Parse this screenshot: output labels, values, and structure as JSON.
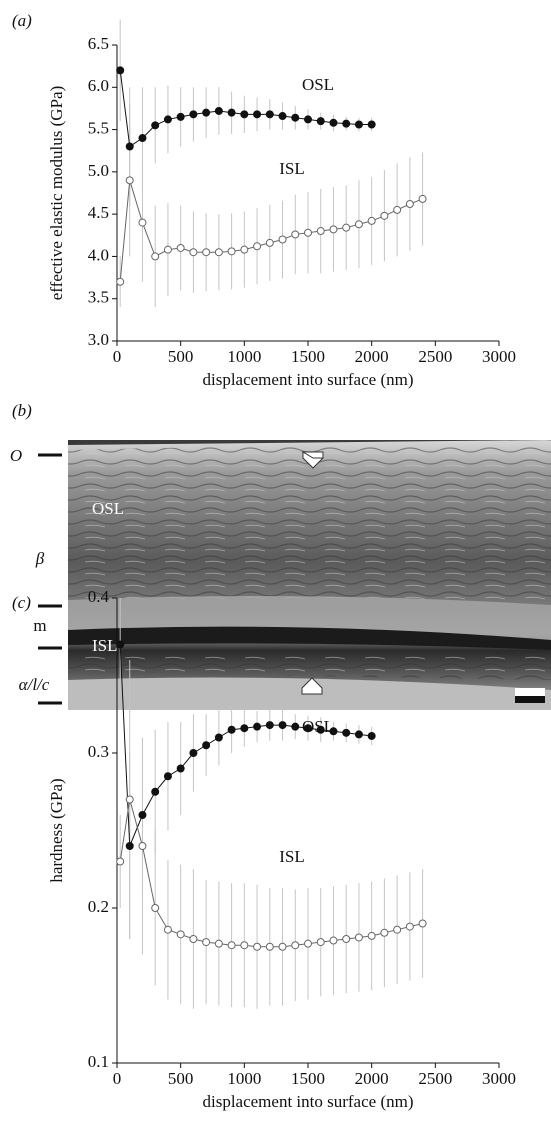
{
  "chart_data": [
    {
      "type": "scatter",
      "panel": "(a)",
      "ylabel": "effective elastic modulus (GPa)",
      "xlabel": "displacement into surface (nm)",
      "xlim": [
        0,
        3000
      ],
      "xticks": [
        0,
        500,
        1000,
        1500,
        2000,
        2500,
        3000
      ],
      "ylim": [
        3.0,
        6.5
      ],
      "yticks": [
        {
          "value": 3.0,
          "label": "3.0"
        },
        3.5,
        {
          "value": 4.0,
          "label": "4.0"
        },
        4.5,
        {
          "value": 5.0,
          "label": "5.0"
        },
        5.5,
        {
          "value": 6.0,
          "label": "6.0"
        },
        6.5
      ],
      "series": [
        {
          "name": "OSL",
          "color": "#111111",
          "marker_fill": "#111111",
          "x": [
            25,
            100,
            200,
            300,
            400,
            500,
            600,
            700,
            800,
            900,
            1000,
            1100,
            1200,
            1300,
            1400,
            1500,
            1600,
            1700,
            1800,
            1900,
            2000
          ],
          "values": [
            6.2,
            5.3,
            5.4,
            5.55,
            5.62,
            5.65,
            5.68,
            5.7,
            5.72,
            5.7,
            5.68,
            5.68,
            5.68,
            5.66,
            5.64,
            5.62,
            5.6,
            5.58,
            5.57,
            5.56,
            5.56
          ],
          "errors": [
            0.6,
            0.7,
            0.6,
            0.45,
            0.4,
            0.35,
            0.32,
            0.3,
            0.28,
            0.25,
            0.22,
            0.2,
            0.18,
            0.16,
            0.14,
            0.12,
            0.1,
            0.1,
            0.08,
            0.08,
            0.08
          ]
        },
        {
          "name": "ISL",
          "color": "#666666",
          "marker_fill": "#ffffff",
          "x": [
            25,
            100,
            200,
            300,
            400,
            500,
            600,
            700,
            800,
            900,
            1000,
            1100,
            1200,
            1300,
            1400,
            1500,
            1600,
            1700,
            1800,
            1900,
            2000,
            2100,
            2200,
            2300,
            2400
          ],
          "values": [
            3.7,
            4.9,
            4.4,
            4.0,
            4.08,
            4.1,
            4.05,
            4.05,
            4.05,
            4.06,
            4.08,
            4.12,
            4.16,
            4.2,
            4.26,
            4.28,
            4.3,
            4.32,
            4.34,
            4.38,
            4.42,
            4.48,
            4.55,
            4.62,
            4.68
          ],
          "errors": [
            0.3,
            0.9,
            0.7,
            0.6,
            0.55,
            0.5,
            0.48,
            0.46,
            0.45,
            0.45,
            0.45,
            0.45,
            0.45,
            0.46,
            0.47,
            0.48,
            0.5,
            0.5,
            0.5,
            0.52,
            0.52,
            0.54,
            0.55,
            0.55,
            0.55
          ]
        }
      ]
    },
    {
      "type": "scatter",
      "panel": "(c)",
      "ylabel": "hardness (GPa)",
      "xlabel": "displacement into surface (nm)",
      "xlim": [
        0,
        3000
      ],
      "xticks": [
        0,
        500,
        1000,
        1500,
        2000,
        2500,
        3000
      ],
      "ylim": [
        0.1,
        0.4
      ],
      "yticks": [
        0.1,
        0.2,
        0.3,
        0.4
      ],
      "series": [
        {
          "name": "OSL",
          "color": "#111111",
          "marker_fill": "#111111",
          "x": [
            25,
            100,
            200,
            300,
            400,
            500,
            600,
            700,
            800,
            900,
            1000,
            1100,
            1200,
            1300,
            1400,
            1500,
            1600,
            1700,
            1800,
            1900,
            2000
          ],
          "values": [
            0.37,
            0.24,
            0.26,
            0.275,
            0.285,
            0.29,
            0.3,
            0.305,
            0.31,
            0.315,
            0.316,
            0.317,
            0.318,
            0.318,
            0.317,
            0.316,
            0.315,
            0.314,
            0.313,
            0.312,
            0.311
          ],
          "errors": [
            0.03,
            0.06,
            0.05,
            0.04,
            0.035,
            0.03,
            0.025,
            0.02,
            0.018,
            0.015,
            0.012,
            0.01,
            0.01,
            0.01,
            0.008,
            0.008,
            0.008,
            0.006,
            0.006,
            0.006,
            0.006
          ]
        },
        {
          "name": "ISL",
          "color": "#666666",
          "marker_fill": "#ffffff",
          "x": [
            25,
            100,
            200,
            300,
            400,
            500,
            600,
            700,
            800,
            900,
            1000,
            1100,
            1200,
            1300,
            1400,
            1500,
            1600,
            1700,
            1800,
            1900,
            2000,
            2100,
            2200,
            2300,
            2400
          ],
          "values": [
            0.23,
            0.27,
            0.24,
            0.2,
            0.186,
            0.183,
            0.18,
            0.178,
            0.177,
            0.176,
            0.176,
            0.175,
            0.175,
            0.175,
            0.176,
            0.177,
            0.178,
            0.179,
            0.18,
            0.181,
            0.182,
            0.184,
            0.186,
            0.188,
            0.19
          ],
          "errors": [
            0.03,
            0.09,
            0.07,
            0.05,
            0.045,
            0.045,
            0.045,
            0.04,
            0.04,
            0.04,
            0.04,
            0.04,
            0.038,
            0.038,
            0.036,
            0.036,
            0.035,
            0.035,
            0.035,
            0.035,
            0.035,
            0.035,
            0.035,
            0.035,
            0.035
          ]
        }
      ]
    }
  ],
  "micrograph": {
    "panel": "(b)",
    "layers": [
      "O",
      "β",
      "m",
      "α/l/c"
    ],
    "regions": [
      "OSL",
      "ISL"
    ]
  }
}
